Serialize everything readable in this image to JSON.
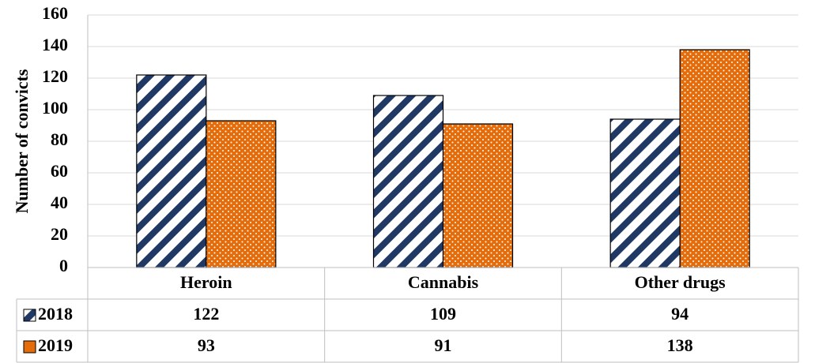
{
  "chart_data": {
    "type": "bar",
    "title": "",
    "xlabel": "",
    "ylabel": "Number of convicts",
    "categories": [
      "Heroin",
      "Cannabis",
      "Other drugs"
    ],
    "series": [
      {
        "name": "2018",
        "values": [
          122,
          109,
          94
        ],
        "pattern": "diagonal-stripes",
        "color": "#1f3864"
      },
      {
        "name": "2019",
        "values": [
          93,
          91,
          138
        ],
        "pattern": "dots",
        "color": "#e46c0a"
      }
    ],
    "ylim": [
      0,
      160
    ],
    "yticks": [
      "0",
      "20",
      "40",
      "60",
      "80",
      "100",
      "120",
      "140",
      "160"
    ],
    "grid": true,
    "legend": "data-table-left",
    "data_table": true
  }
}
